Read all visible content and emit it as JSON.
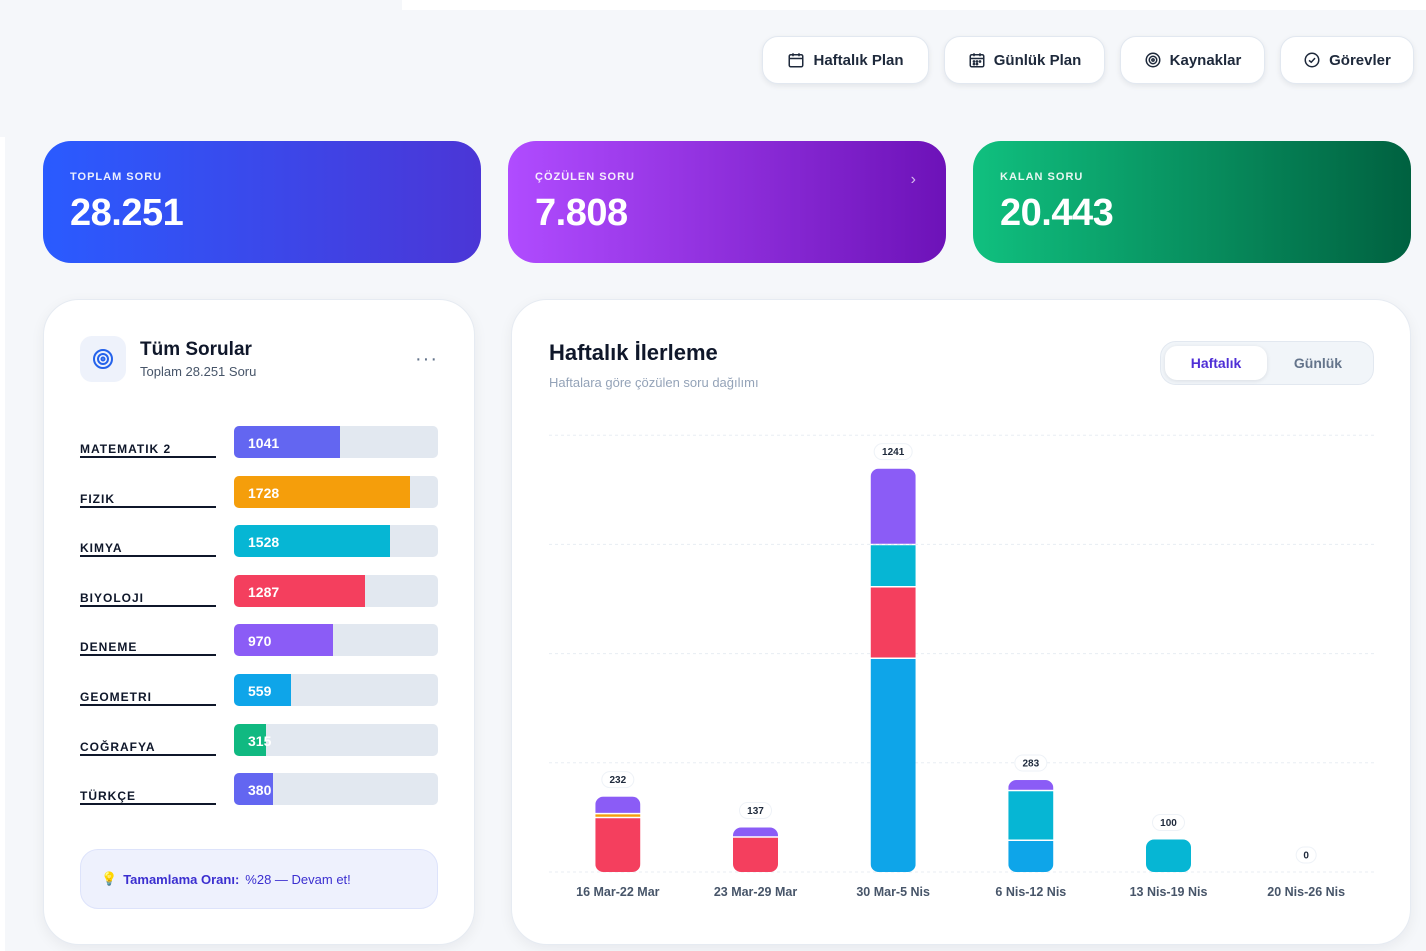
{
  "nav": [
    {
      "label": "Haftalık Plan",
      "icon": "calendar-icon"
    },
    {
      "label": "Günlük Plan",
      "icon": "calendar-grid-icon"
    },
    {
      "label": "Kaynaklar",
      "icon": "target-icon"
    },
    {
      "label": "Görevler",
      "icon": "check-circle-icon"
    }
  ],
  "stats": {
    "total": {
      "label": "TOPLAM SORU",
      "value": "28.251"
    },
    "solved": {
      "label": "ÇÖZÜLEN SORU",
      "value": "7.808",
      "chevron": "›"
    },
    "remaining": {
      "label": "KALAN SORU",
      "value": "20.443"
    }
  },
  "subjects_card": {
    "title": "Tüm Sorular",
    "subtitle": "Toplam 28.251 Soru",
    "menu": "···",
    "max": 2000,
    "items": [
      {
        "name": "MATEMATIK 2",
        "value": 1041,
        "color": "#6366f1"
      },
      {
        "name": "FIZIK",
        "value": 1728,
        "color": "#f59e0b"
      },
      {
        "name": "KIMYA",
        "value": 1528,
        "color": "#06b6d4"
      },
      {
        "name": "BIYOLOJI",
        "value": 1287,
        "color": "#f43f5e"
      },
      {
        "name": "DENEME",
        "value": 970,
        "color": "#8b5cf6"
      },
      {
        "name": "GEOMETRI",
        "value": 559,
        "color": "#0ea5e9"
      },
      {
        "name": "COĞRAFYA",
        "value": 315,
        "color": "#10b981"
      },
      {
        "name": "TÜRKÇE",
        "value": 380,
        "color": "#6366f1"
      }
    ],
    "note_icon": "💡",
    "note_bold": "Tamamlama Oranı:",
    "note_text": "%28 — Devam et!"
  },
  "progress_card": {
    "title": "Haftalık İlerleme",
    "subtitle": "Haftalara göre çözülen soru dağılımı",
    "toggle": {
      "active": "Haftalık",
      "inactive": "Günlük"
    }
  },
  "chart_data": {
    "type": "bar",
    "stacked": true,
    "ylim": [
      0,
      1400
    ],
    "grid": true,
    "categories": [
      "16 Mar-22 Mar",
      "23 Mar-29 Mar",
      "30 Mar-5 Nis",
      "6 Nis-12 Nis",
      "13 Nis-19 Nis",
      "20 Nis-26 Nis"
    ],
    "totals": [
      232,
      137,
      1241,
      283,
      100,
      0
    ],
    "colors": {
      "blue": "#0ea5e9",
      "red": "#f43f5e",
      "amber": "#f59e0b",
      "cyan": "#06b6d4",
      "purple": "#8b5cf6"
    },
    "series": [
      {
        "color": "blue",
        "values": [
          0,
          0,
          660,
          100,
          0,
          0
        ]
      },
      {
        "color": "red",
        "values": [
          170,
          110,
          220,
          0,
          0,
          0
        ]
      },
      {
        "color": "amber",
        "values": [
          12,
          0,
          0,
          0,
          0,
          0
        ]
      },
      {
        "color": "cyan",
        "values": [
          0,
          0,
          130,
          153,
          100,
          0
        ]
      },
      {
        "color": "purple",
        "values": [
          50,
          27,
          231,
          30,
          0,
          0
        ]
      }
    ]
  }
}
